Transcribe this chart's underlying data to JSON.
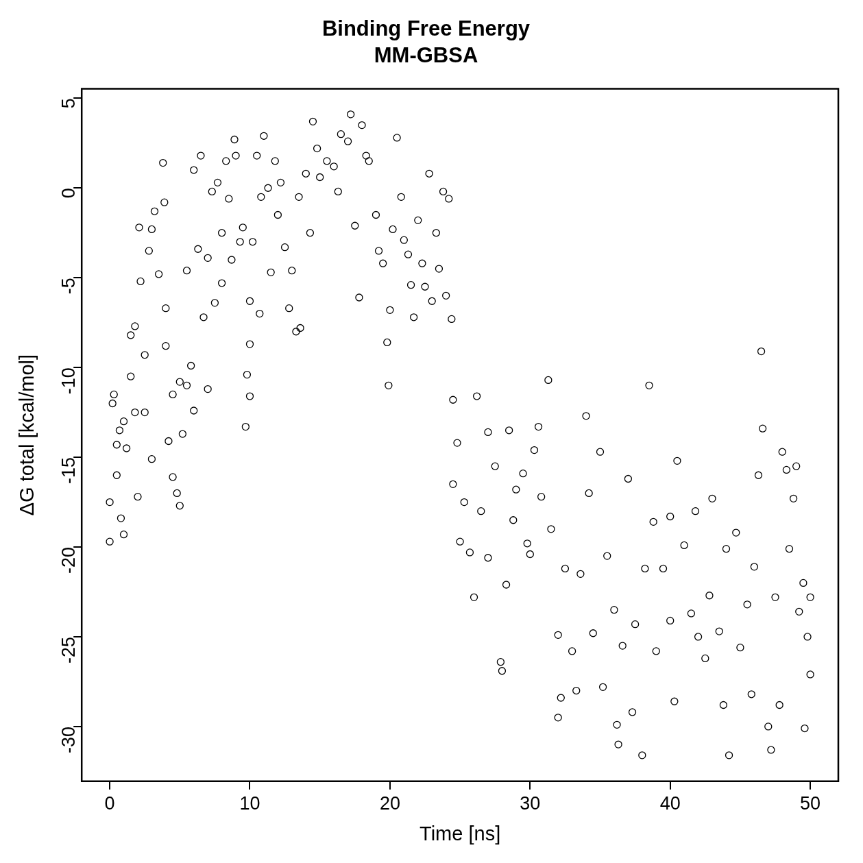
{
  "chart_data": {
    "type": "scatter",
    "title": "Binding Free Energy",
    "subtitle": "MM-GBSA",
    "xlabel": "Time [ns]",
    "ylabel": "ΔG total [kcal/mol]",
    "x": [
      0,
      0,
      0.2,
      0.3,
      0.5,
      0.5,
      0.7,
      0.8,
      1,
      1,
      1.2,
      1.5,
      1.5,
      1.8,
      1.8,
      2,
      2.1,
      2.2,
      2.5,
      2.5,
      2.8,
      3,
      3,
      3.2,
      3.5,
      3.8,
      3.9,
      4,
      4,
      4.2,
      4.5,
      4.5,
      4.8,
      5,
      5,
      5.2,
      5.5,
      5.5,
      5.8,
      6,
      6,
      6.3,
      6.5,
      6.7,
      7,
      7,
      7.3,
      7.5,
      7.7,
      8,
      8,
      8.3,
      8.5,
      8.7,
      8.9,
      9,
      9.3,
      9.5,
      9.7,
      9.8,
      10,
      10,
      10,
      10.2,
      10.5,
      10.7,
      10.8,
      11,
      11.3,
      11.5,
      11.8,
      12,
      12.2,
      12.5,
      12.8,
      13,
      13.3,
      13.5,
      13.6,
      14,
      14.3,
      14.5,
      14.8,
      15,
      15.5,
      16,
      16.3,
      16.5,
      17,
      17.2,
      17.5,
      17.8,
      18,
      18.3,
      18.5,
      19,
      19.2,
      19.5,
      19.8,
      19.9,
      20,
      20.2,
      20.5,
      20.8,
      21,
      21.3,
      21.5,
      21.7,
      22,
      22.3,
      22.5,
      22.8,
      23,
      23.3,
      23.5,
      23.8,
      24,
      24.2,
      24.4,
      24.5,
      24.5,
      24.8,
      25,
      25.3,
      25.7,
      26,
      26.2,
      26.5,
      27,
      27,
      27.5,
      27.9,
      28,
      28.3,
      28.5,
      28.8,
      29,
      29.5,
      29.8,
      30,
      30.3,
      30.6,
      30.8,
      31.3,
      31.5,
      32,
      32,
      32.2,
      32.5,
      33,
      33.3,
      33.6,
      34,
      34.2,
      34.5,
      35,
      35.2,
      35.5,
      36,
      36.2,
      36.3,
      36.6,
      37,
      37.3,
      37.5,
      38,
      38.2,
      38.5,
      38.8,
      39,
      39.5,
      40,
      40,
      40.3,
      40.5,
      41,
      41.5,
      41.8,
      42,
      42.5,
      42.8,
      43,
      43.5,
      43.8,
      44,
      44.2,
      44.7,
      45,
      45.5,
      45.8,
      46,
      46.3,
      46.5,
      46.6,
      47,
      47.2,
      47.5,
      47.8,
      48,
      48.3,
      48.5,
      48.8,
      49,
      49.2,
      49.5,
      49.6,
      49.8,
      50,
      50
    ],
    "values": [
      -17.5,
      -19.7,
      -12,
      -11.5,
      -14.3,
      -16,
      -13.5,
      -18.4,
      -19.3,
      -13,
      -14.5,
      -10.5,
      -8.2,
      -7.7,
      -12.5,
      -17.2,
      -2.2,
      -5.2,
      -9.3,
      -12.5,
      -3.5,
      -15.1,
      -2.3,
      -1.3,
      -4.8,
      1.4,
      -0.8,
      -6.7,
      -8.8,
      -14.1,
      -11.5,
      -16.1,
      -17,
      -17.7,
      -10.8,
      -13.7,
      -11,
      -4.6,
      -9.9,
      -12.4,
      1,
      -3.4,
      1.8,
      -7.2,
      -11.2,
      -3.9,
      -0.2,
      -6.4,
      0.3,
      -2.5,
      -5.3,
      1.5,
      -0.6,
      -4,
      2.7,
      1.8,
      -3,
      -2.2,
      -13.3,
      -10.4,
      -11.6,
      -6.3,
      -8.7,
      -3,
      1.8,
      -7,
      -0.5,
      2.9,
      0,
      -4.7,
      1.5,
      -1.5,
      0.3,
      -3.3,
      -6.7,
      -4.6,
      -8,
      -0.5,
      -7.8,
      0.8,
      -2.5,
      3.7,
      2.2,
      0.6,
      1.5,
      1.2,
      -0.2,
      3,
      2.6,
      4.1,
      -2.1,
      -6.1,
      3.5,
      1.8,
      1.5,
      -1.5,
      -3.5,
      -4.2,
      -8.6,
      -11,
      -6.8,
      -2.3,
      2.8,
      -0.5,
      -2.9,
      -3.7,
      -5.4,
      -7.2,
      -1.8,
      -4.2,
      -5.5,
      0.8,
      -6.3,
      -2.5,
      -4.5,
      -0.2,
      -6,
      -0.6,
      -7.3,
      -11.8,
      -16.5,
      -14.2,
      -19.7,
      -17.5,
      -20.3,
      -22.8,
      -11.6,
      -18,
      -13.6,
      -20.6,
      -15.5,
      -26.4,
      -26.9,
      -22.1,
      -13.5,
      -18.5,
      -16.8,
      -15.9,
      -19.8,
      -20.4,
      -14.6,
      -13.3,
      -17.2,
      -10.7,
      -19,
      -29.5,
      -24.9,
      -28.4,
      -21.2,
      -25.8,
      -28,
      -21.5,
      -12.7,
      -17,
      -24.8,
      -14.7,
      -27.8,
      -20.5,
      -23.5,
      -29.9,
      -31,
      -25.5,
      -16.2,
      -29.2,
      -24.3,
      -31.6,
      -21.2,
      -11,
      -18.6,
      -25.8,
      -21.2,
      -24.1,
      -18.3,
      -28.6,
      -15.2,
      -19.9,
      -23.7,
      -18,
      -25,
      -26.2,
      -22.7,
      -17.3,
      -24.7,
      -28.8,
      -20.1,
      -31.6,
      -19.2,
      -25.6,
      -23.2,
      -28.2,
      -21.1,
      -16,
      -9.1,
      -13.4,
      -30,
      -31.3,
      -22.8,
      -28.8,
      -14.7,
      -15.7,
      -20.1,
      -17.3,
      -15.5,
      -23.6,
      -22,
      -30.1,
      -25,
      -27.1,
      -22.8
    ],
    "color": "#000000",
    "marker": "circle",
    "xlim": [
      -2,
      52
    ],
    "ylim": [
      -33.05,
      5.53
    ],
    "xticks": [
      0,
      10,
      20,
      30,
      40,
      50
    ],
    "yticks": [
      -30,
      -25,
      -20,
      -15,
      -10,
      -5,
      0,
      5
    ]
  }
}
